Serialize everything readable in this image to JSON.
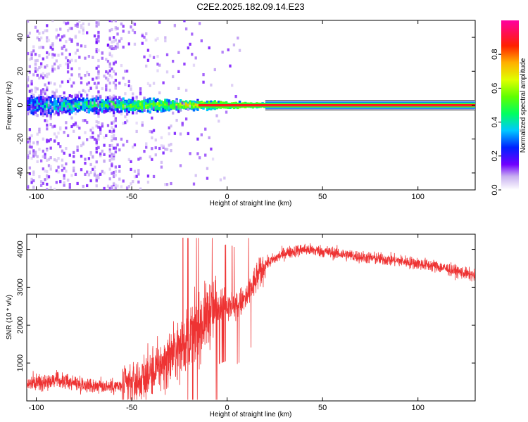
{
  "title": "C2E2.2025.182.09.14.E23",
  "chart_data": [
    {
      "type": "heatmap",
      "xlabel": "Height of straight line (km)",
      "ylabel": "Frequency (Hz)",
      "xlim": [
        -105,
        130
      ],
      "ylim": [
        -50,
        50
      ],
      "xticks": [
        -100,
        -50,
        0,
        50,
        100
      ],
      "yticks": [
        -40,
        -20,
        0,
        20,
        40
      ],
      "colorbar": {
        "label": "Normalized spectral amplitude",
        "range": [
          0,
          1
        ],
        "ticks": [
          "0.0",
          "0.2",
          "0.4",
          "0.6",
          "0.8"
        ]
      },
      "carrier_line": {
        "frequency": 0,
        "x_start": 20,
        "x_end": 130
      }
    },
    {
      "type": "line",
      "xlabel": "Height of straight line (km)",
      "ylabel": "SNR (10 * v/v)",
      "xlim": [
        -105,
        130
      ],
      "ylim": [
        0,
        4400
      ],
      "xticks": [
        -100,
        -50,
        0,
        50,
        100
      ],
      "yticks": [
        1000,
        2000,
        3000,
        4000
      ],
      "series_color": "#ee3333",
      "trend": {
        "x": [
          -105,
          -90,
          -70,
          -55,
          -45,
          -35,
          -25,
          -15,
          -10,
          -5,
          0,
          5,
          10,
          15,
          20,
          30,
          40,
          50,
          70,
          90,
          110,
          130
        ],
        "y": [
          450,
          550,
          400,
          380,
          550,
          900,
          1400,
          1900,
          2300,
          2500,
          2600,
          2500,
          2700,
          3200,
          3600,
          3900,
          4000,
          3950,
          3800,
          3700,
          3550,
          3300
        ]
      }
    }
  ]
}
